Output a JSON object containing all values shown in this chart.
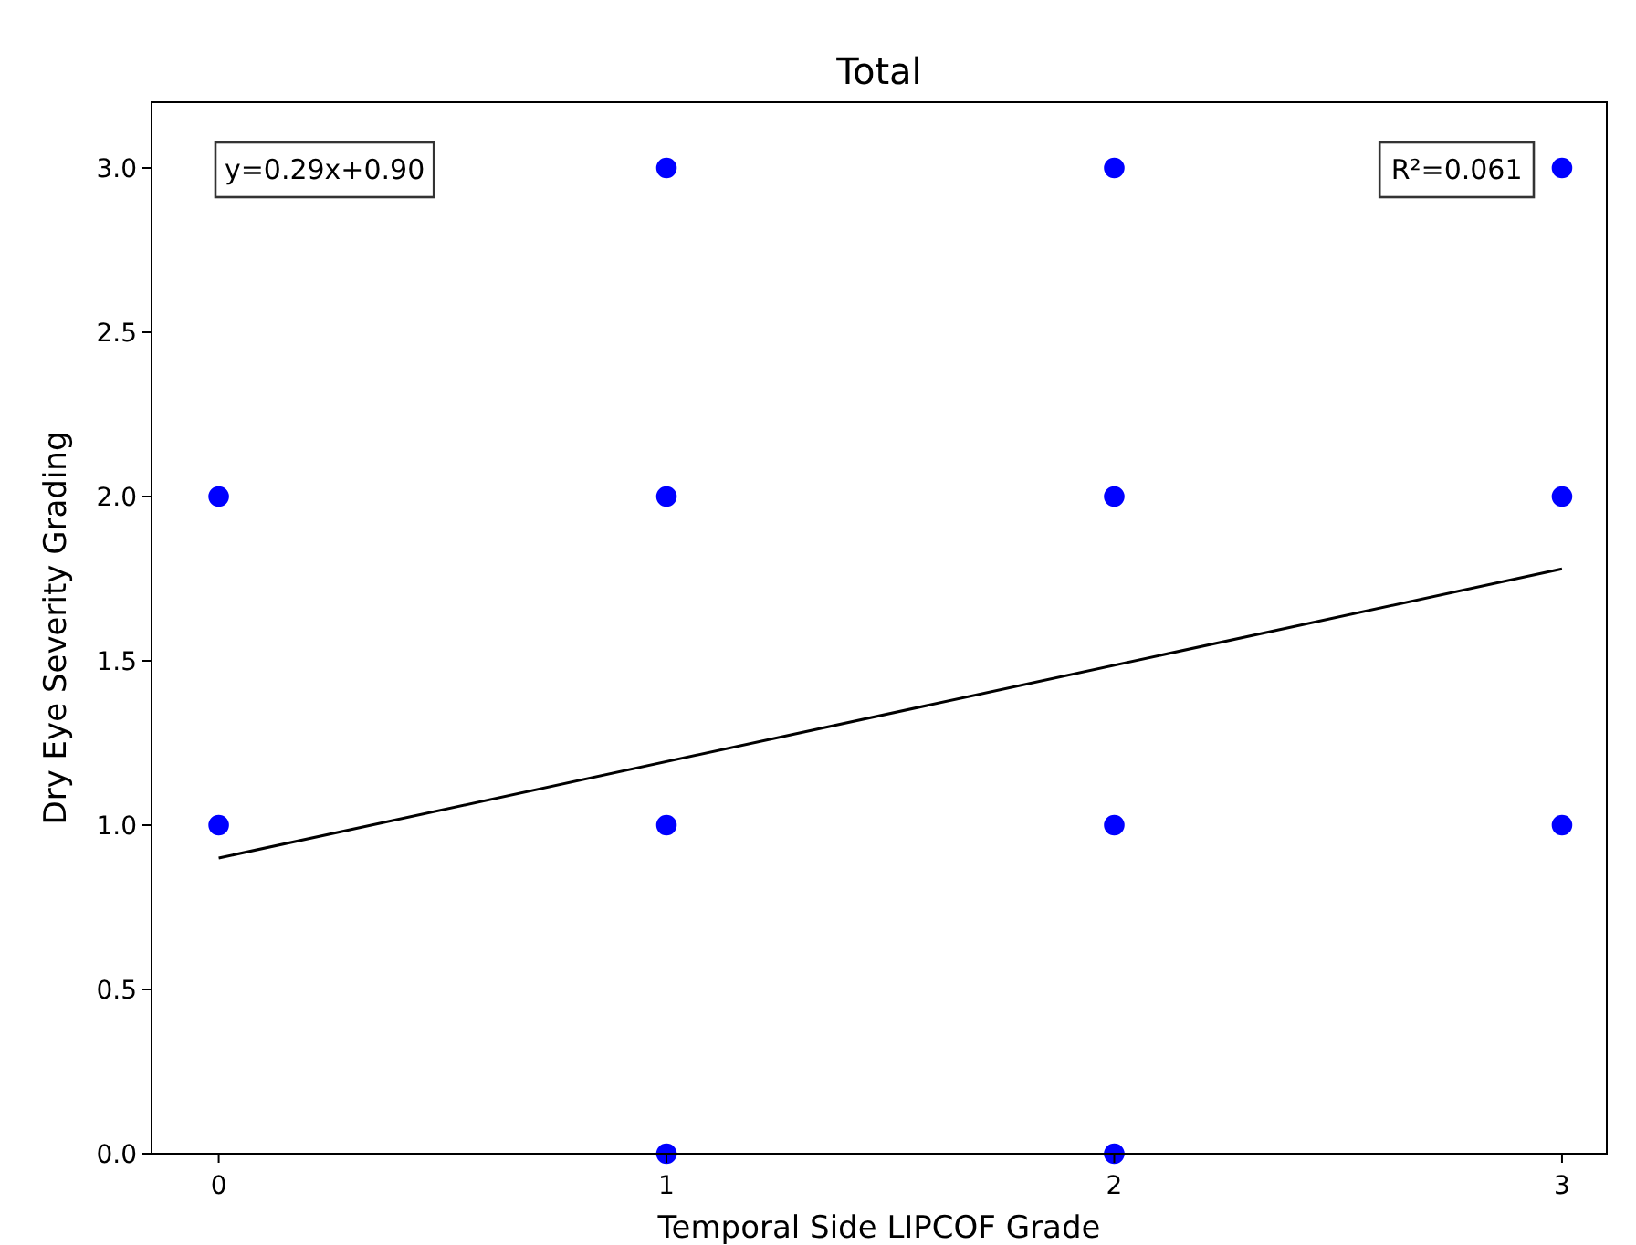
{
  "chart_data": {
    "type": "scatter",
    "title": "Total",
    "xlabel": "Temporal Side LIPCOF Grade",
    "ylabel": "Dry Eye Severity Grading",
    "xlim": [
      -0.15,
      3.1
    ],
    "xticks": [
      0,
      1,
      2,
      3
    ],
    "ylim": [
      0,
      3.2
    ],
    "yticks": [
      {
        "value": 0,
        "label": "0.0"
      },
      {
        "value": 0.5,
        "label": "0.5"
      },
      {
        "value": 1,
        "label": "1.0"
      },
      {
        "value": 1.5,
        "label": "1.5"
      },
      {
        "value": 2,
        "label": "2.0"
      },
      {
        "value": 2.5,
        "label": "2.5"
      },
      {
        "value": 3,
        "label": "3.0"
      }
    ],
    "grid": false,
    "series": [
      {
        "marker": "circle",
        "color": "#0000ff",
        "x": [
          0,
          0,
          1,
          1,
          1,
          1,
          2,
          2,
          2,
          2,
          3,
          3,
          3
        ],
        "values": [
          1,
          2,
          0,
          1,
          2,
          3,
          0,
          1,
          2,
          3,
          1,
          2,
          3
        ]
      },
      {
        "type": "line",
        "color": "#000000",
        "x": [
          0,
          3
        ],
        "values": [
          0.9,
          1.78
        ]
      }
    ],
    "annotations": [
      "y=0.29x+0.90",
      "R²=0.061"
    ]
  }
}
